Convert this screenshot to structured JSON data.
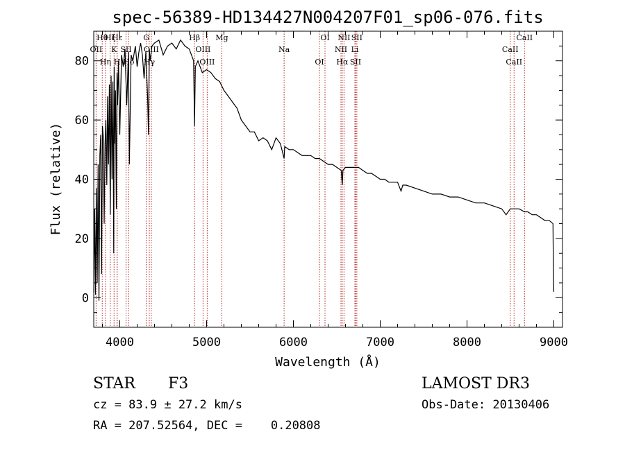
{
  "title": "spec-56389-HD134427N004207F01_sp06-076.fits",
  "chart_data": {
    "type": "line",
    "title": "spec-56389-HD134427N004207F01_sp06-076.fits",
    "xlabel": "Wavelength (Å)",
    "ylabel": "Flux (relative)",
    "xlim": [
      3700,
      9100
    ],
    "ylim": [
      -10,
      90
    ],
    "xticks": [
      4000,
      5000,
      6000,
      7000,
      8000,
      9000
    ],
    "xtick_labels": [
      "4000",
      "5000",
      "6000",
      "7000",
      "8000",
      "9000"
    ],
    "yticks": [
      0,
      20,
      40,
      60,
      80
    ],
    "ytick_labels": [
      "0",
      "20",
      "40",
      "60",
      "80"
    ],
    "line_color": "#000000",
    "marker_color": "#b22222",
    "series": [
      {
        "name": "spectrum",
        "x": [
          3700,
          3710,
          3720,
          3730,
          3740,
          3750,
          3760,
          3770,
          3780,
          3790,
          3800,
          3810,
          3820,
          3830,
          3840,
          3850,
          3860,
          3870,
          3880,
          3890,
          3900,
          3910,
          3920,
          3930,
          3935,
          3940,
          3950,
          3960,
          3968,
          3975,
          3985,
          4000,
          4020,
          4040,
          4060,
          4080,
          4100,
          4110,
          4130,
          4150,
          4180,
          4200,
          4220,
          4240,
          4260,
          4280,
          4300,
          4320,
          4330,
          4340,
          4350,
          4370,
          4400,
          4450,
          4500,
          4550,
          4600,
          4650,
          4700,
          4750,
          4800,
          4850,
          4861,
          4870,
          4900,
          4950,
          5000,
          5050,
          5100,
          5150,
          5200,
          5250,
          5300,
          5350,
          5400,
          5450,
          5500,
          5550,
          5600,
          5650,
          5700,
          5750,
          5800,
          5850,
          5893,
          5900,
          5950,
          6000,
          6050,
          6100,
          6150,
          6200,
          6250,
          6300,
          6350,
          6400,
          6450,
          6500,
          6550,
          6563,
          6570,
          6600,
          6650,
          6700,
          6750,
          6800,
          6850,
          6900,
          6950,
          7000,
          7050,
          7100,
          7150,
          7200,
          7240,
          7260,
          7300,
          7400,
          7500,
          7600,
          7700,
          7800,
          7900,
          8000,
          8100,
          8200,
          8300,
          8400,
          8450,
          8498,
          8542,
          8600,
          8662,
          8700,
          8750,
          8800,
          8850,
          8900,
          8950,
          8990,
          8995,
          9000
        ],
        "y": [
          2,
          30,
          1,
          37,
          5,
          45,
          -1,
          48,
          55,
          8,
          58,
          54,
          25,
          52,
          60,
          38,
          68,
          45,
          72,
          28,
          75,
          40,
          73,
          15,
          78,
          52,
          70,
          30,
          76,
          65,
          80,
          55,
          82,
          78,
          84,
          65,
          83,
          45,
          82,
          80,
          85,
          78,
          83,
          86,
          82,
          74,
          83,
          68,
          55,
          84,
          80,
          85,
          86,
          87,
          82,
          85,
          86,
          84,
          87,
          85,
          84,
          80,
          58,
          78,
          80,
          76,
          77,
          76,
          74,
          73,
          70,
          68,
          66,
          64,
          60,
          58,
          56,
          56,
          53,
          54,
          53,
          50,
          54,
          52,
          47,
          51,
          50,
          50,
          49,
          48,
          48,
          48,
          47,
          47,
          46,
          45,
          45,
          44,
          43,
          38,
          43,
          44,
          44,
          44,
          44,
          43,
          42,
          42,
          41,
          40,
          40,
          39,
          39,
          39,
          36,
          38,
          38,
          37,
          36,
          35,
          35,
          34,
          34,
          33,
          32,
          32,
          31,
          30,
          28,
          30,
          30,
          30,
          29,
          29,
          28,
          28,
          27,
          26,
          26,
          25,
          8,
          2
        ]
      }
    ],
    "lines": [
      {
        "label": "Hθ",
        "x": 3798
      },
      {
        "label": "OII",
        "x": 3727
      },
      {
        "label": "Hη",
        "x": 3835
      },
      {
        "label": "Hζ",
        "x": 3889
      },
      {
        "label": "K",
        "x": 3934
      },
      {
        "label": "H",
        "x": 3968
      },
      {
        "label": "Hε",
        "x": 3970
      },
      {
        "label": "SII",
        "x": 4072
      },
      {
        "label": "Hδ",
        "x": 4102
      },
      {
        "label": "G",
        "x": 4305
      },
      {
        "label": "OIII",
        "x": 4363
      },
      {
        "label": "Hγ",
        "x": 4340
      },
      {
        "label": "Hβ",
        "x": 4861
      },
      {
        "label": "OIII",
        "x": 4959
      },
      {
        "label": "OIII",
        "x": 5007
      },
      {
        "label": "Mg",
        "x": 5175
      },
      {
        "label": "Na",
        "x": 5893
      },
      {
        "label": "OI",
        "x": 6300
      },
      {
        "label": "OI",
        "x": 6364
      },
      {
        "label": "NII",
        "x": 6548
      },
      {
        "label": "Hα",
        "x": 6563
      },
      {
        "label": "NII",
        "x": 6583
      },
      {
        "label": "Li",
        "x": 6708
      },
      {
        "label": "SII",
        "x": 6716
      },
      {
        "label": "SII",
        "x": 6731
      },
      {
        "label": "CaII",
        "x": 8498
      },
      {
        "label": "CaII",
        "x": 8542
      },
      {
        "label": "CaII",
        "x": 8662
      }
    ]
  },
  "info": {
    "class_label": "STAR",
    "subclass": "F3",
    "survey": "LAMOST DR3",
    "cz": "cz = 83.9 ± 27.2 km/s",
    "obs_date": "Obs-Date: 20130406",
    "radec": "RA = 207.52564, DEC =    0.20808"
  }
}
